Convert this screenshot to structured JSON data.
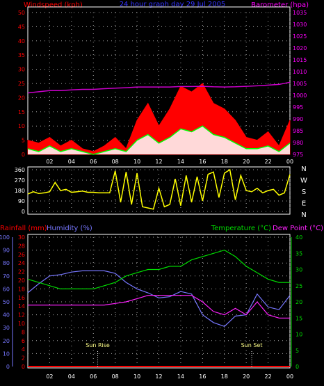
{
  "header": {
    "windspeed_label": "Windspeed (kph)",
    "title": "24 hour graph day 29 Jul 2005",
    "barometer_label": "Barometer (hpa)"
  },
  "lower_header": {
    "rainfall_label": "Rainfall (mm)",
    "humidity_label": "Humidity (%)",
    "temperature_label": "Temperature (°C)",
    "dewpoint_label": "Dew Point (°C)"
  },
  "annotations": {
    "sunrise": "Sun Rise",
    "sunset": "Sun Set"
  },
  "colors": {
    "wind": "#ff0000",
    "wind_avg": "#00ff00",
    "wind_fill": "#ffffff",
    "barometer": "#cc00cc",
    "direction": "#ffff00",
    "humidity": "#7777ff",
    "temperature": "#00dd00",
    "dewpoint": "#ff22ff",
    "rainfall": "#ff0000",
    "title": "#3333ff",
    "axis": "#ffffff"
  },
  "chart_data": [
    {
      "type": "line",
      "name": "wind-barometer",
      "x_tick_labels": [
        "02",
        "04",
        "06",
        "08",
        "10",
        "12",
        "14",
        "16",
        "18",
        "20",
        "22",
        "00"
      ],
      "left_axis": {
        "label": "Windspeed (kph)",
        "ylim": [
          0,
          50
        ],
        "ticks": [
          "0",
          "5",
          "10",
          "15",
          "20",
          "25",
          "30",
          "35",
          "40",
          "45",
          "50"
        ]
      },
      "right_axis": {
        "label": "Barometer (hpa)",
        "ylim": [
          975,
          1035
        ],
        "ticks": [
          "975",
          "980",
          "985",
          "990",
          "995",
          "1000",
          "1005",
          "1010",
          "1015",
          "1020",
          "1025",
          "1030",
          "1035"
        ]
      },
      "x_hours": [
        0,
        1,
        2,
        3,
        4,
        5,
        6,
        7,
        8,
        9,
        10,
        11,
        12,
        13,
        14,
        15,
        16,
        17,
        18,
        19,
        20,
        21,
        22,
        23,
        24
      ],
      "gust_kph": [
        5,
        4,
        6,
        3,
        5,
        2,
        1,
        3,
        6,
        2,
        12,
        18,
        10,
        16,
        24,
        22,
        25,
        18,
        16,
        12,
        6,
        5,
        8,
        3,
        12
      ],
      "avg_kph": [
        2,
        1,
        3,
        1,
        2,
        1,
        0,
        1,
        2,
        1,
        5,
        7,
        4,
        6,
        9,
        8,
        10,
        7,
        6,
        4,
        2,
        2,
        3,
        1,
        4
      ],
      "barometer_hpa": [
        1001,
        1001.5,
        1002,
        1002,
        1002.3,
        1002.5,
        1002.5,
        1002.8,
        1003,
        1003.2,
        1003.5,
        1003.5,
        1003.5,
        1003.5,
        1003.7,
        1003.7,
        1003.8,
        1003.6,
        1003.5,
        1003.6,
        1003.8,
        1004,
        1004.3,
        1004.6,
        1005.5
      ],
      "grid": true
    },
    {
      "type": "line",
      "name": "wind-direction",
      "left_axis": {
        "ylim": [
          0,
          360
        ],
        "ticks": [
          "0",
          "90",
          "180",
          "270",
          "360"
        ]
      },
      "right_axis": {
        "ticks": [
          "N",
          "W",
          "S",
          "E",
          "N"
        ]
      },
      "x_hours": [
        0,
        0.5,
        1,
        1.5,
        2,
        2.5,
        3,
        3.5,
        4,
        4.5,
        5,
        5.5,
        6,
        6.5,
        7,
        7.5,
        8,
        8.5,
        9,
        9.5,
        10,
        10.5,
        11,
        11.5,
        12,
        12.5,
        13,
        13.5,
        14,
        14.5,
        15,
        15.5,
        16,
        16.5,
        17,
        17.5,
        18,
        18.5,
        19,
        19.5,
        20,
        20.5,
        21,
        21.5,
        22,
        22.5,
        23,
        23.5,
        24
      ],
      "direction_deg": [
        150,
        170,
        155,
        160,
        170,
        250,
        180,
        190,
        165,
        170,
        175,
        165,
        165,
        160,
        160,
        160,
        350,
        80,
        340,
        60,
        330,
        40,
        30,
        20,
        200,
        40,
        60,
        280,
        50,
        310,
        80,
        300,
        90,
        320,
        340,
        120,
        330,
        360,
        100,
        310,
        180,
        170,
        200,
        160,
        180,
        190,
        140,
        160,
        320
      ],
      "grid": true
    },
    {
      "type": "line",
      "name": "temperature-humidity",
      "x_tick_labels": [
        "02",
        "04",
        "06",
        "08",
        "10",
        "12",
        "14",
        "16",
        "18",
        "20",
        "22",
        "00"
      ],
      "humidity_axis": {
        "label": "Humidity (%)",
        "ylim": [
          0,
          100
        ],
        "ticks": [
          "0",
          "10",
          "20",
          "30",
          "40",
          "50",
          "60",
          "70",
          "80",
          "90",
          "100"
        ]
      },
      "rainfall_axis": {
        "label": "Rainfall (mm)",
        "ylim": [
          0,
          30
        ],
        "ticks": [
          "0",
          "2",
          "4",
          "6",
          "8",
          "10",
          "12",
          "14",
          "16",
          "18",
          "20",
          "22",
          "24",
          "26",
          "28",
          "30"
        ]
      },
      "temperature_axis": {
        "label": "Temperature (°C)",
        "ylim": [
          0,
          40
        ],
        "ticks": [
          "0",
          "5",
          "10",
          "15",
          "20",
          "25",
          "30",
          "35",
          "40"
        ]
      },
      "x_hours": [
        0,
        1,
        2,
        3,
        4,
        5,
        6,
        7,
        8,
        9,
        10,
        11,
        12,
        13,
        14,
        15,
        16,
        17,
        18,
        19,
        20,
        21,
        22,
        23,
        24
      ],
      "humidity_pct": [
        57,
        64,
        70,
        71,
        73,
        74,
        74,
        74,
        72,
        65,
        60,
        57,
        53,
        54,
        58,
        56,
        40,
        34,
        31,
        39,
        40,
        56,
        46,
        44,
        55
      ],
      "temperature_c": [
        27,
        26,
        25,
        24,
        24,
        24,
        24,
        25,
        26,
        28,
        29,
        30,
        30,
        31,
        31,
        33,
        34,
        35,
        36,
        34,
        31,
        29,
        27,
        26,
        26
      ],
      "dewpoint_c": [
        19,
        19,
        19,
        19,
        19,
        19,
        19,
        19,
        19.5,
        20,
        21,
        22,
        22,
        22,
        22,
        22,
        20,
        17,
        16,
        18,
        16,
        20,
        16,
        15,
        15
      ],
      "rainfall_mm": [
        0,
        0,
        0,
        0,
        0,
        0,
        0,
        0,
        0,
        0,
        0,
        0,
        0,
        0,
        0,
        0,
        0,
        0,
        0,
        0,
        0,
        0,
        0,
        0,
        0
      ],
      "sunrise_hour": 6.4,
      "sunset_hour": 20.5,
      "grid": true
    }
  ]
}
